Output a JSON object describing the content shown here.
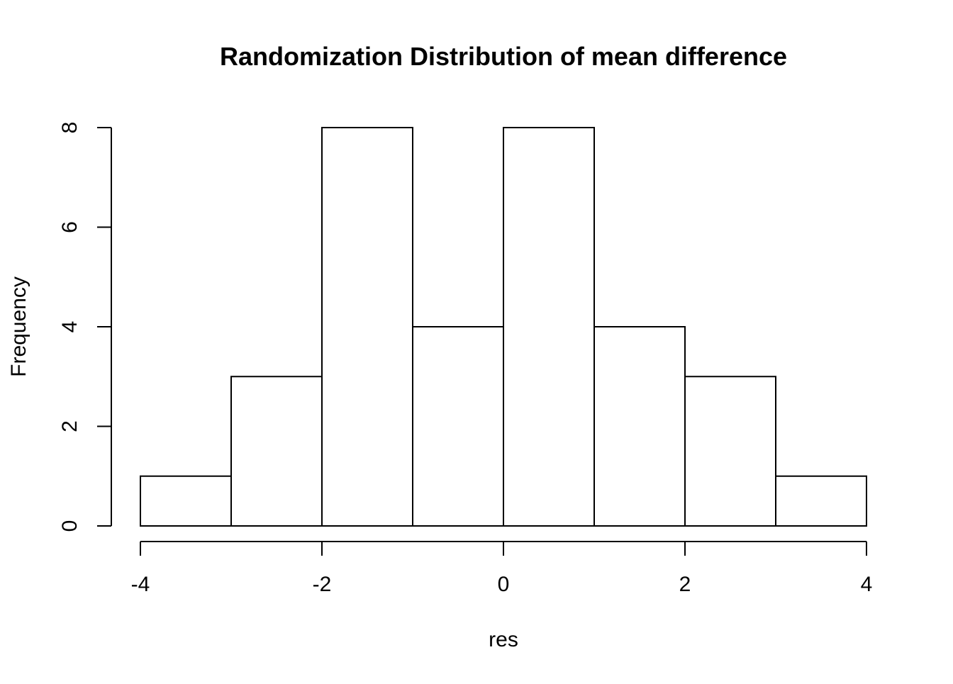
{
  "chart_data": {
    "type": "bar",
    "title": "Randomization Distribution of mean difference",
    "xlabel": "res",
    "ylabel": "Frequency",
    "bins": [
      {
        "x0": -4,
        "x1": -3,
        "count": 1
      },
      {
        "x0": -3,
        "x1": -2,
        "count": 3
      },
      {
        "x0": -2,
        "x1": -1,
        "count": 8
      },
      {
        "x0": -1,
        "x1": 0,
        "count": 4
      },
      {
        "x0": 0,
        "x1": 1,
        "count": 8
      },
      {
        "x0": 1,
        "x1": 2,
        "count": 4
      },
      {
        "x0": 2,
        "x1": 3,
        "count": 3
      },
      {
        "x0": 3,
        "x1": 4,
        "count": 1
      }
    ],
    "xlim": [
      -4,
      4
    ],
    "ylim": [
      0,
      8
    ],
    "x_ticks": [
      -4,
      -2,
      0,
      2,
      4
    ],
    "x_tick_labels": [
      "-4",
      "-2",
      "0",
      "2",
      "4"
    ],
    "y_ticks": [
      0,
      2,
      4,
      6,
      8
    ],
    "y_tick_labels": [
      "0",
      "2",
      "4",
      "6",
      "8"
    ],
    "grid": false,
    "legend": "none",
    "bar_fill": "#ffffff",
    "bar_stroke": "#000000"
  }
}
